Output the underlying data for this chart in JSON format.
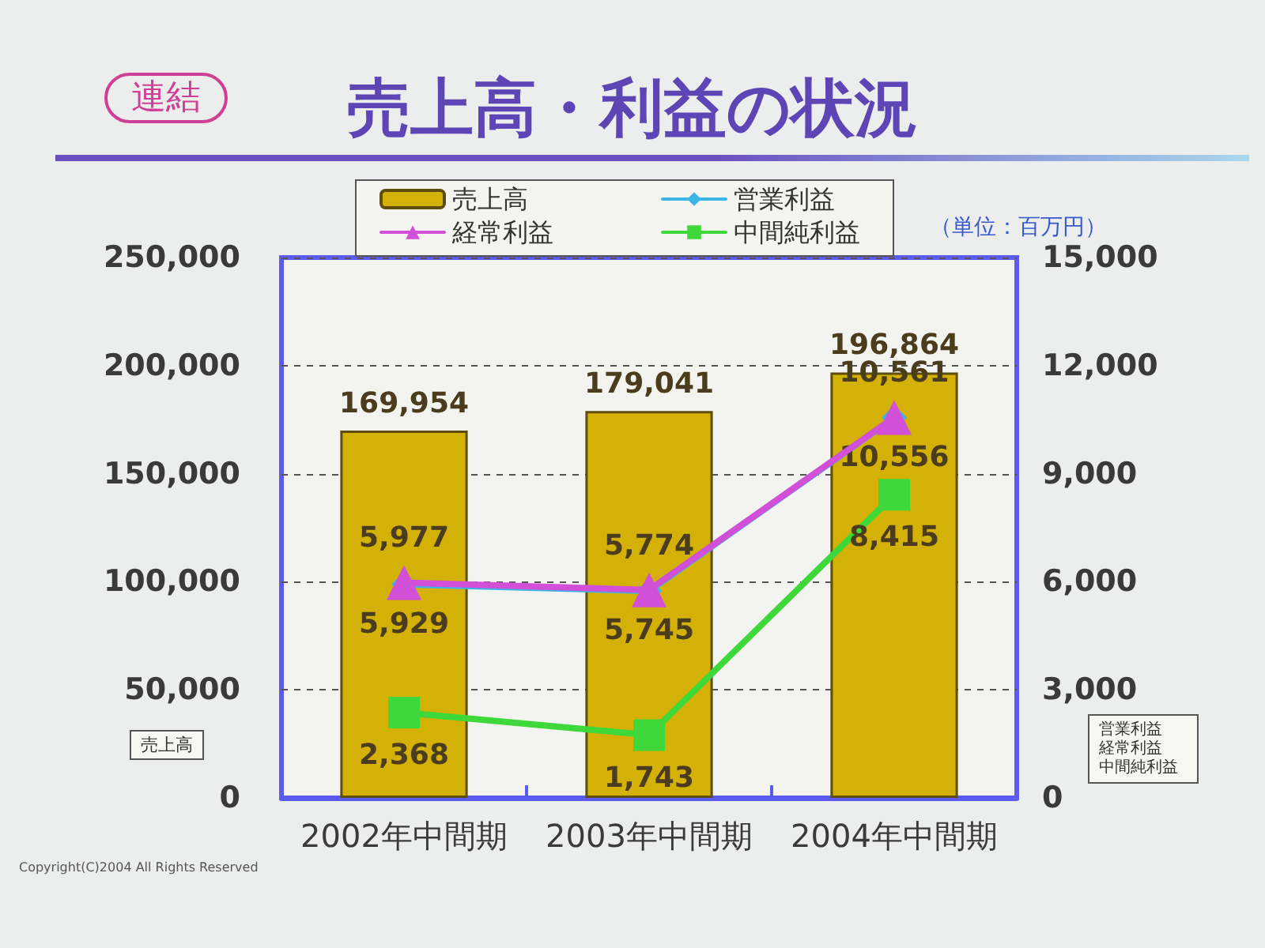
{
  "chart_data": {
    "type": "bar",
    "title": "売上高・利益の状況",
    "ylabel": "売上高",
    "y2label": "営業利益経常利益中間純利益",
    "categories": [
      "2002年中間期",
      "2003年中間期",
      "2004年中間期"
    ],
    "series": [
      {
        "name": "売上高",
        "color": "#d4b106",
        "values": [
          169954,
          179041,
          196864
        ],
        "value_labels": [
          "169,954",
          "179,041",
          "196,864"
        ]
      },
      {
        "name": "営業利益",
        "type": "line",
        "axis": "y2",
        "color": "#3cb4e6",
        "marker": "diamond",
        "values": [
          5929,
          5745,
          10556
        ],
        "value_labels": [
          "5,929",
          "5,745",
          "10,556"
        ]
      },
      {
        "name": "経常利益",
        "type": "line",
        "axis": "y2",
        "color": "#d24fd8",
        "marker": "triangle",
        "values": [
          5977,
          5774,
          10561
        ],
        "value_labels": [
          "5,977",
          "5,774",
          "10,561"
        ]
      },
      {
        "name": "中間純利益",
        "type": "line",
        "axis": "y2",
        "color": "#3ed83a",
        "marker": "square",
        "values": [
          2368,
          1743,
          8415
        ],
        "value_labels": [
          "2,368",
          "1,743",
          "8,415"
        ]
      }
    ],
    "ylim": [
      0,
      250000
    ],
    "yticks": [
      0,
      {
        "value": 50000,
        "label": "50,000"
      },
      {
        "value": 100000,
        "label": "100,000"
      },
      {
        "value": 150000,
        "label": "150,000"
      },
      {
        "value": 200000,
        "label": "200,000"
      },
      {
        "value": 250000,
        "label": "250,000"
      }
    ],
    "y2lim": [
      0,
      15000
    ],
    "y2ticks": [
      0,
      {
        "value": 3000,
        "label": "3,000"
      },
      {
        "value": 6000,
        "label": "6,000"
      },
      {
        "value": 9000,
        "label": "9,000"
      },
      {
        "value": 12000,
        "label": "12,000"
      },
      {
        "value": 15000,
        "label": "15,000"
      }
    ],
    "grid": "y",
    "legend": "top",
    "annotations": [
      "連結",
      "（単位：百万円）",
      "Copyright(C)2004 All Rights Reserved"
    ]
  }
}
